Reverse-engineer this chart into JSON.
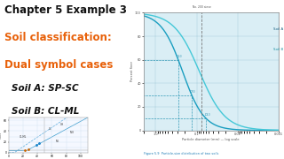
{
  "title_line1": "Chapter 5 Example 3",
  "title_line1_color": "#111111",
  "title_line2": "Soil classification:",
  "title_line2_color": "#e8610a",
  "title_line3": "Dual symbol cases",
  "title_line3_color": "#e8610a",
  "soil_a_label": "Soil A: SP-SC",
  "soil_b_label": "Soil B: CL-ML",
  "soil_labels_color": "#111111",
  "bg_color": "#ffffff",
  "chart_bg_color": "#daeef5",
  "chart_title": "No. 200 sieve",
  "figure_caption": "Figure 5.9  Particle-size distribution of two soils",
  "figure_caption_color": "#1a7ab5",
  "ylabel": "Percent finer",
  "xlabel": "Particle diameter (mm) — log scale",
  "soil_a_curve_color": "#1a9ec0",
  "soil_b_curve_color": "#45c8d8",
  "dashed_line_color": "#2090b0",
  "grid_color": "#88bbcc",
  "axis_color": "#555555",
  "tick_color": "#444444"
}
